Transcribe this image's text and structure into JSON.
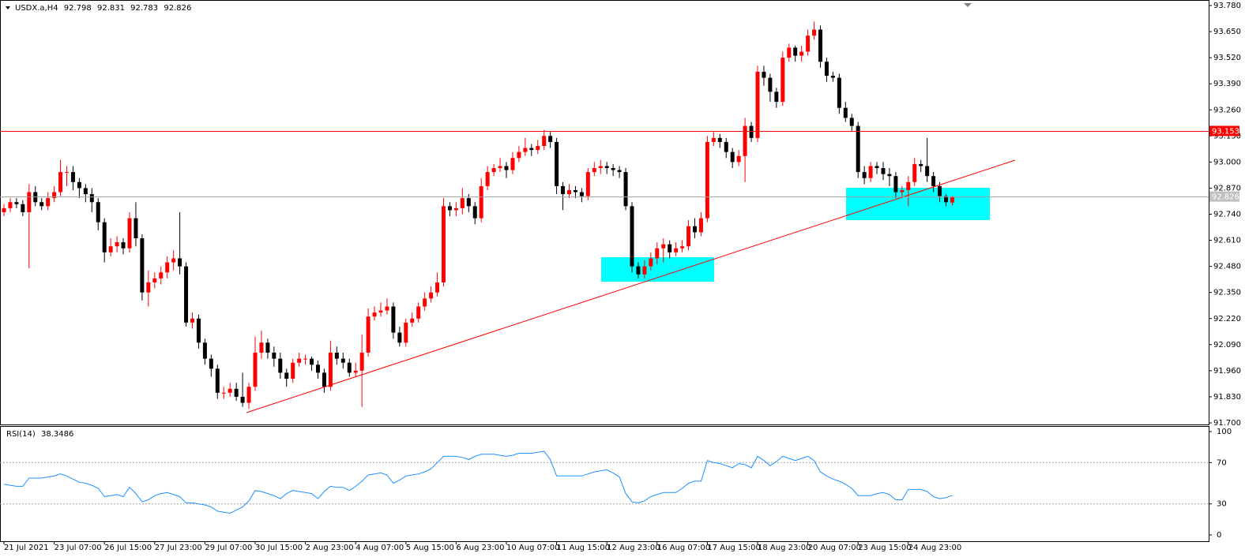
{
  "chart_data": {
    "type": "candlestick",
    "title": "USDX.a,H4",
    "up_color": "#ff0000",
    "down_color": "#000000",
    "ylim": [
      91.7,
      93.78
    ],
    "yticks": [
      {
        "value": 93.78,
        "label": "93.780"
      },
      {
        "value": 93.65,
        "label": "93.650"
      },
      {
        "value": 93.52,
        "label": "93.520"
      },
      {
        "value": 93.39,
        "label": "93.390"
      },
      {
        "value": 93.26,
        "label": "93.260"
      },
      {
        "value": 93.13,
        "label": "93.130"
      },
      {
        "value": 93.0,
        "label": "93.000"
      },
      {
        "value": 92.87,
        "label": "92.870"
      },
      {
        "value": 92.74,
        "label": "92.740"
      },
      {
        "value": 92.61,
        "label": "92.610"
      },
      {
        "value": 92.48,
        "label": "92.480"
      },
      {
        "value": 92.35,
        "label": "92.350"
      },
      {
        "value": 92.22,
        "label": "92.220"
      },
      {
        "value": 92.09,
        "label": "92.090"
      },
      {
        "value": 91.96,
        "label": "91.960"
      },
      {
        "value": 91.83,
        "label": "91.830"
      },
      {
        "value": 91.7,
        "label": "91.700"
      }
    ],
    "hline": {
      "value": 93.153,
      "color": "#ff0000"
    },
    "price_line_color": "#a0a0a0",
    "categories": [
      "21 Jul 2021",
      null,
      null,
      null,
      null,
      null,
      null,
      null,
      "23 Jul 07:00",
      null,
      null,
      null,
      null,
      null,
      null,
      null,
      "26 Jul 15:00",
      null,
      null,
      null,
      null,
      null,
      null,
      null,
      "27 Jul 23:00",
      null,
      null,
      null,
      null,
      null,
      null,
      null,
      "29 Jul 07:00",
      null,
      null,
      null,
      null,
      null,
      null,
      null,
      "30 Jul 15:00",
      null,
      null,
      null,
      null,
      null,
      null,
      null,
      "2 Aug 23:00",
      null,
      null,
      null,
      null,
      null,
      null,
      null,
      "4 Aug 07:00",
      null,
      null,
      null,
      null,
      null,
      null,
      null,
      "5 Aug 15:00",
      null,
      null,
      null,
      null,
      null,
      null,
      null,
      "6 Aug 23:00",
      null,
      null,
      null,
      null,
      null,
      null,
      null,
      "10 Aug 07:00",
      null,
      null,
      null,
      null,
      null,
      null,
      null,
      "11 Aug 15:00",
      null,
      null,
      null,
      null,
      null,
      null,
      null,
      "12 Aug 23:00",
      null,
      null,
      null,
      null,
      null,
      null,
      null,
      "16 Aug 07:00",
      null,
      null,
      null,
      null,
      null,
      null,
      null,
      "17 Aug 15:00",
      null,
      null,
      null,
      null,
      null,
      null,
      null,
      "18 Aug 23:00",
      null,
      null,
      null,
      null,
      null,
      null,
      null,
      "20 Aug 07:00",
      null,
      null,
      null,
      null,
      null,
      null,
      null,
      "23 Aug 15:00",
      null,
      null,
      null,
      null,
      null,
      null,
      null,
      "24 Aug 23:00",
      null,
      null,
      null,
      null,
      null,
      null,
      null
    ],
    "candles": [
      [
        92.75,
        92.79,
        92.73,
        92.77
      ],
      [
        92.77,
        92.82,
        92.75,
        92.8
      ],
      [
        92.8,
        92.82,
        92.77,
        92.79
      ],
      [
        92.79,
        92.81,
        92.73,
        92.75
      ],
      [
        92.75,
        92.89,
        92.47,
        92.85
      ],
      [
        92.85,
        92.88,
        92.78,
        92.8
      ],
      [
        92.8,
        92.82,
        92.76,
        92.78
      ],
      [
        92.78,
        92.85,
        92.76,
        92.82
      ],
      [
        92.82,
        92.88,
        92.8,
        92.85
      ],
      [
        92.85,
        93.01,
        92.83,
        92.95
      ],
      [
        92.95,
        92.98,
        92.88,
        92.95
      ],
      [
        92.95,
        92.98,
        92.86,
        92.9
      ],
      [
        92.9,
        92.92,
        92.82,
        92.87
      ],
      [
        92.87,
        92.89,
        92.8,
        92.84
      ],
      [
        92.84,
        92.87,
        92.75,
        92.8
      ],
      [
        92.8,
        92.82,
        92.66,
        92.7
      ],
      [
        92.7,
        92.72,
        92.5,
        92.55
      ],
      [
        92.55,
        92.62,
        92.53,
        92.58
      ],
      [
        92.58,
        92.63,
        92.55,
        92.6
      ],
      [
        92.6,
        92.62,
        92.54,
        92.57
      ],
      [
        92.57,
        92.75,
        92.55,
        92.72
      ],
      [
        92.72,
        92.8,
        92.58,
        92.62
      ],
      [
        92.62,
        92.64,
        92.31,
        92.35
      ],
      [
        92.35,
        92.46,
        92.28,
        92.4
      ],
      [
        92.4,
        92.45,
        92.37,
        92.42
      ],
      [
        92.42,
        92.48,
        92.39,
        92.45
      ],
      [
        92.45,
        92.53,
        92.42,
        92.5
      ],
      [
        92.5,
        92.56,
        92.46,
        92.52
      ],
      [
        92.52,
        92.75,
        92.44,
        92.48
      ],
      [
        92.48,
        92.5,
        92.18,
        92.2
      ],
      [
        92.2,
        92.25,
        92.17,
        92.22
      ],
      [
        92.22,
        92.24,
        92.07,
        92.1
      ],
      [
        92.1,
        92.12,
        91.99,
        92.02
      ],
      [
        92.02,
        92.04,
        91.93,
        91.97
      ],
      [
        91.97,
        91.99,
        91.82,
        91.85
      ],
      [
        91.85,
        91.88,
        91.82,
        91.85
      ],
      [
        91.85,
        91.9,
        91.83,
        91.87
      ],
      [
        91.87,
        91.9,
        91.81,
        91.83
      ],
      [
        91.83,
        91.95,
        91.78,
        91.8
      ],
      [
        91.8,
        91.9,
        91.77,
        91.88
      ],
      [
        91.88,
        92.13,
        91.86,
        92.05
      ],
      [
        92.05,
        92.16,
        92.02,
        92.1
      ],
      [
        92.1,
        92.12,
        92.02,
        92.05
      ],
      [
        92.05,
        92.08,
        91.98,
        92.02
      ],
      [
        92.02,
        92.05,
        91.92,
        91.95
      ],
      [
        91.95,
        91.97,
        91.88,
        91.92
      ],
      [
        91.92,
        92.02,
        91.9,
        92.0
      ],
      [
        92.0,
        92.05,
        91.98,
        92.02
      ],
      [
        92.02,
        92.04,
        91.99,
        92.02
      ],
      [
        92.02,
        92.03,
        91.96,
        91.99
      ],
      [
        91.99,
        92.01,
        91.92,
        91.95
      ],
      [
        91.95,
        91.97,
        91.85,
        91.88
      ],
      [
        91.88,
        92.11,
        91.86,
        92.05
      ],
      [
        92.05,
        92.08,
        91.99,
        92.02
      ],
      [
        92.02,
        92.05,
        91.97,
        92.0
      ],
      [
        92.0,
        92.02,
        91.93,
        91.95
      ],
      [
        91.95,
        92.0,
        91.93,
        91.96
      ],
      [
        91.96,
        92.14,
        91.78,
        92.05
      ],
      [
        92.05,
        92.27,
        92.03,
        92.23
      ],
      [
        92.23,
        92.28,
        92.21,
        92.25
      ],
      [
        92.25,
        92.3,
        92.23,
        92.26
      ],
      [
        92.26,
        92.32,
        92.24,
        92.28
      ],
      [
        92.28,
        92.3,
        92.12,
        92.15
      ],
      [
        92.15,
        92.18,
        92.08,
        92.1
      ],
      [
        92.1,
        92.22,
        92.08,
        92.2
      ],
      [
        92.2,
        92.25,
        92.18,
        92.22
      ],
      [
        92.22,
        92.3,
        92.2,
        92.28
      ],
      [
        92.28,
        92.35,
        92.26,
        92.32
      ],
      [
        92.32,
        92.38,
        92.3,
        92.35
      ],
      [
        92.35,
        92.45,
        92.33,
        92.4
      ],
      [
        92.4,
        92.82,
        92.38,
        92.78
      ],
      [
        92.78,
        92.8,
        92.73,
        92.76
      ],
      [
        92.76,
        92.8,
        92.73,
        92.77
      ],
      [
        92.77,
        92.87,
        92.74,
        92.82
      ],
      [
        92.82,
        92.84,
        92.75,
        92.78
      ],
      [
        92.78,
        92.8,
        92.69,
        92.72
      ],
      [
        92.72,
        92.92,
        92.7,
        92.88
      ],
      [
        92.88,
        92.98,
        92.86,
        92.95
      ],
      [
        92.95,
        92.99,
        92.93,
        92.97
      ],
      [
        92.97,
        93.02,
        92.95,
        92.98
      ],
      [
        92.98,
        93.0,
        92.92,
        92.96
      ],
      [
        92.96,
        93.05,
        92.94,
        93.02
      ],
      [
        93.02,
        93.08,
        93.0,
        93.05
      ],
      [
        93.05,
        93.12,
        93.03,
        93.07
      ],
      [
        93.07,
        93.09,
        93.03,
        93.06
      ],
      [
        93.06,
        93.11,
        93.04,
        93.08
      ],
      [
        93.08,
        93.16,
        93.06,
        93.13
      ],
      [
        93.13,
        93.15,
        93.07,
        93.1
      ],
      [
        93.1,
        93.12,
        92.84,
        92.88
      ],
      [
        92.88,
        92.9,
        92.76,
        92.84
      ],
      [
        92.84,
        92.89,
        92.82,
        92.86
      ],
      [
        92.86,
        92.88,
        92.82,
        92.85
      ],
      [
        92.85,
        92.87,
        92.8,
        92.83
      ],
      [
        92.83,
        92.97,
        92.81,
        92.95
      ],
      [
        92.95,
        93.0,
        92.93,
        92.97
      ],
      [
        92.97,
        93.01,
        92.94,
        92.98
      ],
      [
        92.98,
        93.0,
        92.94,
        92.97
      ],
      [
        92.97,
        92.99,
        92.93,
        92.96
      ],
      [
        92.96,
        92.98,
        92.92,
        92.95
      ],
      [
        92.95,
        92.97,
        92.76,
        92.78
      ],
      [
        92.78,
        92.8,
        92.45,
        92.48
      ],
      [
        92.48,
        92.5,
        92.42,
        92.44
      ],
      [
        92.44,
        92.51,
        92.42,
        92.48
      ],
      [
        92.48,
        92.55,
        92.46,
        92.52
      ],
      [
        92.52,
        92.6,
        92.49,
        92.57
      ],
      [
        92.57,
        92.62,
        92.5,
        92.59
      ],
      [
        92.59,
        92.61,
        92.52,
        92.55
      ],
      [
        92.55,
        92.6,
        92.53,
        92.57
      ],
      [
        92.57,
        92.61,
        92.55,
        92.58
      ],
      [
        92.58,
        92.71,
        92.56,
        92.68
      ],
      [
        92.68,
        92.72,
        92.62,
        92.65
      ],
      [
        92.65,
        92.75,
        92.63,
        92.72
      ],
      [
        92.72,
        93.13,
        92.7,
        93.1
      ],
      [
        93.1,
        93.15,
        93.08,
        93.12
      ],
      [
        93.12,
        93.14,
        93.07,
        93.1
      ],
      [
        93.1,
        93.12,
        93.02,
        93.05
      ],
      [
        93.05,
        93.07,
        92.97,
        93.0
      ],
      [
        93.0,
        93.06,
        92.98,
        93.03
      ],
      [
        93.03,
        93.22,
        92.9,
        93.18
      ],
      [
        93.18,
        93.2,
        93.1,
        93.12
      ],
      [
        93.12,
        93.48,
        93.1,
        93.45
      ],
      [
        93.45,
        93.48,
        93.38,
        93.42
      ],
      [
        93.42,
        93.44,
        93.3,
        93.35
      ],
      [
        93.35,
        93.37,
        93.27,
        93.3
      ],
      [
        93.3,
        93.55,
        93.28,
        93.52
      ],
      [
        93.52,
        93.59,
        93.5,
        93.57
      ],
      [
        93.57,
        93.58,
        93.5,
        93.53
      ],
      [
        93.53,
        93.58,
        93.5,
        93.55
      ],
      [
        93.55,
        93.66,
        93.53,
        93.63
      ],
      [
        93.63,
        93.7,
        93.61,
        93.66
      ],
      [
        93.66,
        93.68,
        93.47,
        93.5
      ],
      [
        93.5,
        93.52,
        93.4,
        93.43
      ],
      [
        93.43,
        93.45,
        93.4,
        93.42
      ],
      [
        93.42,
        93.44,
        93.24,
        93.27
      ],
      [
        93.27,
        93.3,
        93.2,
        93.22
      ],
      [
        93.22,
        93.24,
        93.15,
        93.18
      ],
      [
        93.18,
        93.2,
        92.92,
        92.95
      ],
      [
        92.95,
        92.98,
        92.89,
        92.92
      ],
      [
        92.92,
        93.0,
        92.9,
        92.98
      ],
      [
        92.98,
        93.0,
        92.94,
        92.97
      ],
      [
        92.97,
        93.0,
        92.91,
        92.94
      ],
      [
        92.94,
        92.97,
        92.88,
        92.93
      ],
      [
        92.93,
        92.95,
        92.82,
        92.85
      ],
      [
        92.85,
        92.88,
        92.82,
        92.86
      ],
      [
        92.86,
        92.93,
        92.78,
        92.9
      ],
      [
        92.9,
        93.02,
        92.88,
        92.99
      ],
      [
        92.99,
        93.01,
        92.95,
        92.98
      ],
      [
        92.98,
        93.12,
        92.9,
        92.93
      ],
      [
        92.93,
        92.95,
        92.85,
        92.88
      ],
      [
        92.88,
        92.9,
        92.8,
        92.83
      ],
      [
        92.83,
        92.84,
        92.78,
        92.8
      ],
      [
        92.798,
        92.831,
        92.783,
        92.826
      ]
    ],
    "rsi": {
      "label": "RSI(14)",
      "color": "#1e90ff",
      "ylim": [
        0,
        100
      ],
      "yticks": [
        100,
        70,
        30,
        0
      ],
      "values": [
        49,
        48,
        47,
        47,
        55,
        55,
        55,
        56,
        57,
        59,
        57,
        54,
        51,
        50,
        48,
        45,
        37,
        38,
        39,
        37,
        46,
        40,
        32,
        34,
        38,
        40,
        41,
        39,
        37,
        31,
        31,
        30,
        29,
        27,
        23,
        22,
        21,
        24,
        27,
        33,
        43,
        42,
        40,
        38,
        35,
        40,
        43,
        42,
        41,
        40,
        35,
        42,
        47,
        46,
        46,
        43,
        47,
        52,
        58,
        59,
        60,
        58,
        50,
        53,
        57,
        58,
        59,
        61,
        64,
        70,
        76,
        76,
        76,
        75,
        73,
        76,
        78,
        78,
        78,
        77,
        76,
        77,
        79,
        79,
        79,
        80,
        81,
        73,
        57,
        57,
        57,
        57,
        57,
        59,
        61,
        62,
        63,
        60,
        56,
        40,
        32,
        31,
        33,
        37,
        39,
        41,
        41,
        41,
        45,
        50,
        52,
        52,
        72,
        70,
        69,
        67,
        65,
        69,
        68,
        65,
        76,
        72,
        67,
        71,
        76,
        74,
        72,
        74,
        76,
        72,
        61,
        57,
        54,
        52,
        49,
        45,
        38,
        38,
        38,
        40,
        41,
        39,
        34,
        34,
        44,
        44,
        44,
        42,
        37,
        35,
        36,
        38.3486
      ]
    }
  }
}
